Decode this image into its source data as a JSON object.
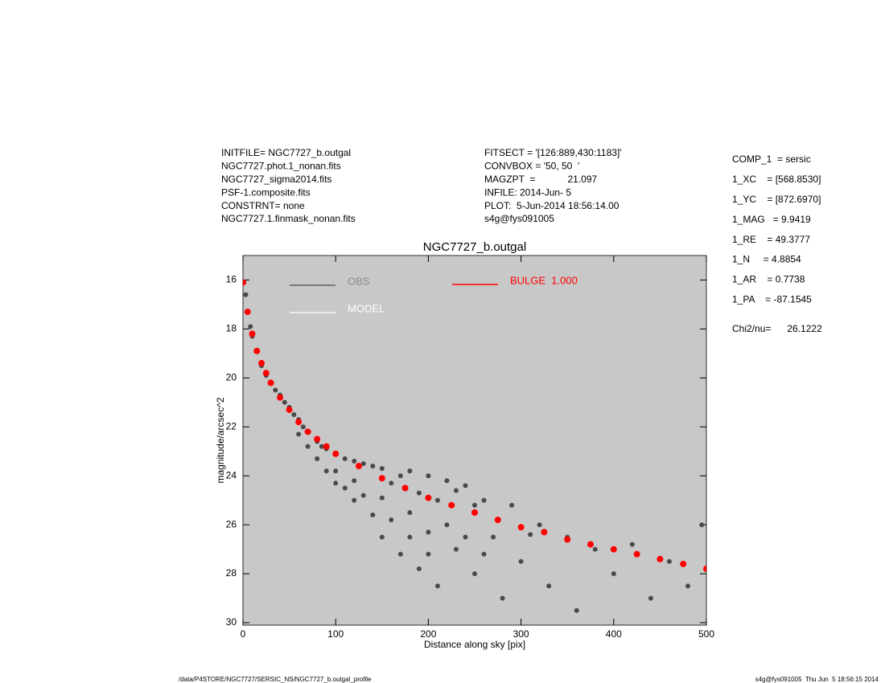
{
  "chart_data": {
    "type": "scatter",
    "title": "NGC7727_b.outgal",
    "xlabel": "Distance along sky [pix]",
    "ylabel": "magnitude/arcsec^2",
    "header_left": [
      "INITFILE= NGC7727_b.outgal",
      "NGC7727.phot.1_nonan.fits",
      "NGC7727_sigma2014.fits",
      "PSF-1.composite.fits",
      "CONSTRNT= none",
      "NGC7727.1.finmask_nonan.fits"
    ],
    "header_middle": [
      "FITSECT = '[126:889,430:1183]'",
      "CONVBOX = '50, 50  '",
      "MAGZPT  =            21.097",
      "INFILE: 2014-Jun- 5",
      "PLOT:  5-Jun-2014 18:56:14.00",
      "s4g@fys091005"
    ],
    "parameters": [
      "COMP_1  = sersic",
      "1_XC    = [568.8530]",
      "1_YC    = [872.6970]",
      "1_MAG   = 9.9419",
      "1_RE    = 49.3777",
      "1_N     = 4.8854",
      "1_AR    = 0.7738",
      "1_PA    = -87.1545"
    ],
    "chi2": "Chi2/nu=      26.1222",
    "footer_left": "/data/P4STORE/NGC7727/SERSIC_NS/NGC7727_b.outgal_profile",
    "footer_right": "s4g@fys091005  Thu Jun  5 18:56:15 2014",
    "xlim": [
      0,
      500
    ],
    "xticks": [
      0,
      100,
      200,
      300,
      400,
      500
    ],
    "ylim": [
      30.1,
      15
    ],
    "yticks": [
      16,
      18,
      20,
      22,
      24,
      26,
      28,
      30
    ],
    "background": "#c8c8c8",
    "series": [
      {
        "name": "OBS",
        "color": "#4a4a4a",
        "x": [
          1,
          3,
          5,
          8,
          10,
          15,
          20,
          25,
          30,
          35,
          40,
          45,
          50,
          55,
          60,
          60,
          65,
          70,
          70,
          80,
          80,
          85,
          90,
          90,
          100,
          100,
          100,
          110,
          110,
          120,
          120,
          120,
          130,
          130,
          140,
          140,
          150,
          150,
          150,
          160,
          160,
          170,
          170,
          180,
          180,
          180,
          190,
          190,
          200,
          200,
          200,
          210,
          210,
          220,
          220,
          230,
          230,
          240,
          240,
          250,
          250,
          260,
          260,
          270,
          280,
          290,
          300,
          310,
          320,
          330,
          350,
          360,
          380,
          400,
          420,
          440,
          460,
          480,
          495
        ],
        "values": [
          16.1,
          16.6,
          17.3,
          17.9,
          18.3,
          18.9,
          19.5,
          19.9,
          20.2,
          20.5,
          20.7,
          21.0,
          21.2,
          21.5,
          21.7,
          22.3,
          22.0,
          22.2,
          22.8,
          22.6,
          23.3,
          22.8,
          22.9,
          23.8,
          23.1,
          23.8,
          24.3,
          23.3,
          24.5,
          23.4,
          24.2,
          25.0,
          23.5,
          24.8,
          23.6,
          25.6,
          23.7,
          24.9,
          26.5,
          24.3,
          25.8,
          24.0,
          27.2,
          23.8,
          25.5,
          26.5,
          24.7,
          27.8,
          24.0,
          26.3,
          27.2,
          25.0,
          28.5,
          24.2,
          26.0,
          24.6,
          27.0,
          24.4,
          26.5,
          25.2,
          28.0,
          25.0,
          27.2,
          26.5,
          29.0,
          25.2,
          27.5,
          26.4,
          26.0,
          28.5,
          26.5,
          29.5,
          27.0,
          28.0,
          26.8,
          29.0,
          27.5,
          28.5,
          26.0
        ]
      },
      {
        "name": "MODEL",
        "color": "#ffffff"
      },
      {
        "name": "BULGE  1.000",
        "color": "#ff0000",
        "x": [
          0,
          5,
          10,
          15,
          20,
          25,
          30,
          40,
          50,
          60,
          70,
          80,
          90,
          100,
          125,
          150,
          175,
          200,
          225,
          250,
          275,
          300,
          325,
          350,
          375,
          400,
          425,
          450,
          475,
          500
        ],
        "values": [
          16.1,
          17.3,
          18.2,
          18.9,
          19.4,
          19.8,
          20.2,
          20.8,
          21.3,
          21.8,
          22.2,
          22.5,
          22.8,
          23.1,
          23.6,
          24.1,
          24.5,
          24.9,
          25.2,
          25.5,
          25.8,
          26.1,
          26.3,
          26.6,
          26.8,
          27.0,
          27.2,
          27.4,
          27.6,
          27.8
        ]
      }
    ]
  }
}
